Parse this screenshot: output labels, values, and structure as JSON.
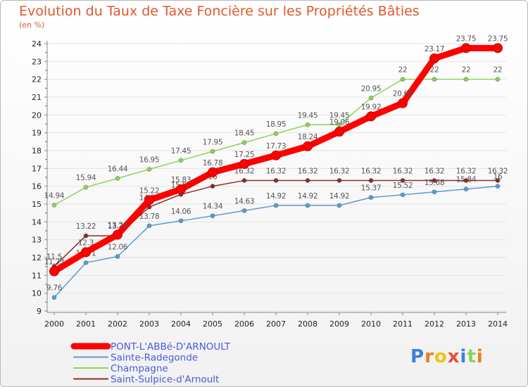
{
  "chart_data": {
    "type": "line",
    "title": "Evolution du Taux de Taxe Foncière sur les Propriétés Bâties",
    "unit_label": "(en %)",
    "x": [
      "2000",
      "2001",
      "2002",
      "2003",
      "2004",
      "2005",
      "2006",
      "2007",
      "2008",
      "2009",
      "2010",
      "2011",
      "2012",
      "2013",
      "2014"
    ],
    "ylim": [
      9,
      24
    ],
    "yticks": [
      "9",
      "10",
      "11",
      "12",
      "13",
      "14",
      "15",
      "16",
      "17",
      "18",
      "19",
      "20",
      "21",
      "22",
      "23",
      "24"
    ],
    "legend_position": "bottom-left",
    "series": [
      {
        "name": "PONT-L'ABBé-D'ARNOULT",
        "color": "#ff0000",
        "values": [
          11.23,
          12.3,
          13.28,
          15.22,
          15.83,
          16.78,
          17.25,
          17.73,
          18.24,
          19.06,
          19.92,
          20.66,
          23.17,
          23.75,
          23.75
        ],
        "labels": [
          "11.23",
          "12.3",
          "13.28",
          "15.22",
          "15.83",
          "16.78",
          "17.25",
          "17.73",
          "18.24",
          "19.06",
          "19.92",
          "20.66",
          "23.17",
          "23.75",
          "23.75"
        ]
      },
      {
        "name": "Sainte-Radegonde",
        "color": "#5b9bd5",
        "values": [
          9.76,
          11.71,
          12.06,
          13.78,
          14.06,
          14.34,
          14.63,
          14.92,
          14.92,
          14.92,
          15.37,
          15.52,
          15.68,
          15.84,
          16
        ],
        "labels": [
          "9.76",
          "11.71",
          "12.06",
          "13.78",
          "14.06",
          "14.34",
          "14.63",
          "14.92",
          "14.92",
          "14.92",
          "15.37",
          "15.52",
          "15.68",
          "15.84",
          "16"
        ]
      },
      {
        "name": "Champagne",
        "color": "#8bd45a",
        "values": [
          14.94,
          15.94,
          16.44,
          16.95,
          17.45,
          17.95,
          18.45,
          18.95,
          19.45,
          19.45,
          20.95,
          22,
          22,
          22,
          22
        ],
        "labels": [
          "14.94",
          "15.94",
          "16.44",
          "16.95",
          "17.45",
          "17.95",
          "18.45",
          "18.95",
          "19.45",
          "19.45",
          "20.95",
          "22",
          "22",
          "22",
          "22"
        ]
      },
      {
        "name": "Saint-Sulpice-d'Arnoult",
        "color": "#8b2c2c",
        "values": [
          11.5,
          13.22,
          13.22,
          14.83,
          15.54,
          16,
          16.32,
          16.32,
          16.32,
          16.32,
          16.32,
          16.32,
          16.32,
          16.32,
          16.32
        ],
        "labels": [
          "11.5",
          "13.22",
          "13.22",
          "14.83",
          "15.54",
          "16",
          "16.32",
          "16.32",
          "16.32",
          "16.32",
          "16.32",
          "16.32",
          "16.32",
          "16.32",
          "16.32"
        ]
      }
    ]
  },
  "legend": {
    "items": [
      {
        "label": "PONT-L'ABBé-D'ARNOULT",
        "color": "#ff0000",
        "text_color": "#4b5bd9"
      },
      {
        "label": "Sainte-Radegonde",
        "color": "#5b9bd5",
        "text_color": "#4b5bd9"
      },
      {
        "label": "Champagne",
        "color": "#8bd45a",
        "text_color": "#4b5bd9"
      },
      {
        "label": "Saint-Sulpice-d'Arnoult",
        "color": "#8b2c2c",
        "text_color": "#4b5bd9"
      }
    ]
  },
  "logo": {
    "text": "Proxiti",
    "letter_colors": [
      "#3f7fd8",
      "#e67e22",
      "#f1c40f",
      "#e74c3c",
      "#3f7fd8",
      "#8bd45a",
      "#e67e22"
    ]
  }
}
